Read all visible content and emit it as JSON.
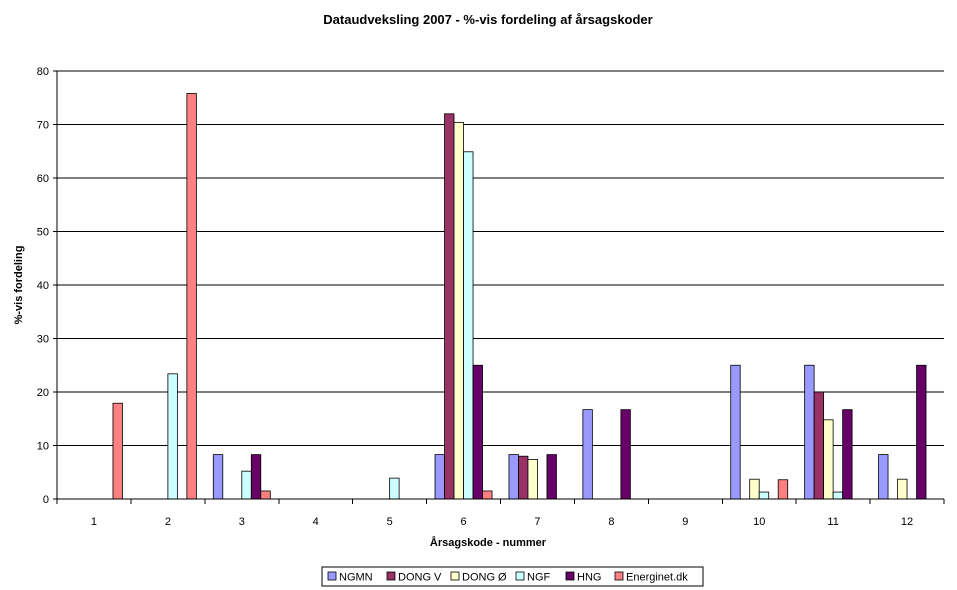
{
  "chart_data": {
    "type": "bar",
    "title": "Dataudveksling 2007 - %-vis fordeling af årsagskoder",
    "xlabel": "Årsagskode - nummer",
    "ylabel": "%-vis fordeling",
    "ylim": [
      0,
      80
    ],
    "yticks": [
      "0",
      "10",
      "20",
      "30",
      "40",
      "50",
      "60",
      "70",
      "80"
    ],
    "grid": true,
    "legend_position": "bottom",
    "categories": [
      "1",
      "2",
      "3",
      "4",
      "5",
      "6",
      "7",
      "8",
      "9",
      "10",
      "11",
      "12"
    ],
    "series": [
      {
        "name": "NGMN",
        "color": "#9999ff",
        "values": [
          0,
          0,
          8.3,
          0,
          0,
          8.3,
          8.3,
          16.7,
          0,
          25,
          25,
          8.3
        ]
      },
      {
        "name": "DONG V",
        "color": "#993366",
        "values": [
          0,
          0,
          0,
          0,
          0,
          72,
          8,
          0,
          0,
          0,
          20,
          0
        ]
      },
      {
        "name": "DONG Ø",
        "color": "#ffffcc",
        "values": [
          0,
          0,
          0,
          0,
          0,
          70.4,
          7.4,
          0,
          0,
          3.7,
          14.8,
          3.7
        ]
      },
      {
        "name": "NGF",
        "color": "#ccffff",
        "values": [
          0,
          23.4,
          5.2,
          0,
          3.9,
          64.9,
          0,
          0,
          0,
          1.3,
          1.3,
          0
        ]
      },
      {
        "name": "HNG",
        "color": "#660066",
        "values": [
          0,
          0,
          8.3,
          0,
          0,
          25,
          8.3,
          16.7,
          0,
          0,
          16.7,
          25
        ]
      },
      {
        "name": "Energinet.dk",
        "color": "#ff8080",
        "values": [
          17.9,
          75.8,
          1.5,
          0,
          0,
          1.5,
          0,
          0,
          0,
          3.6,
          0,
          0
        ]
      }
    ]
  }
}
